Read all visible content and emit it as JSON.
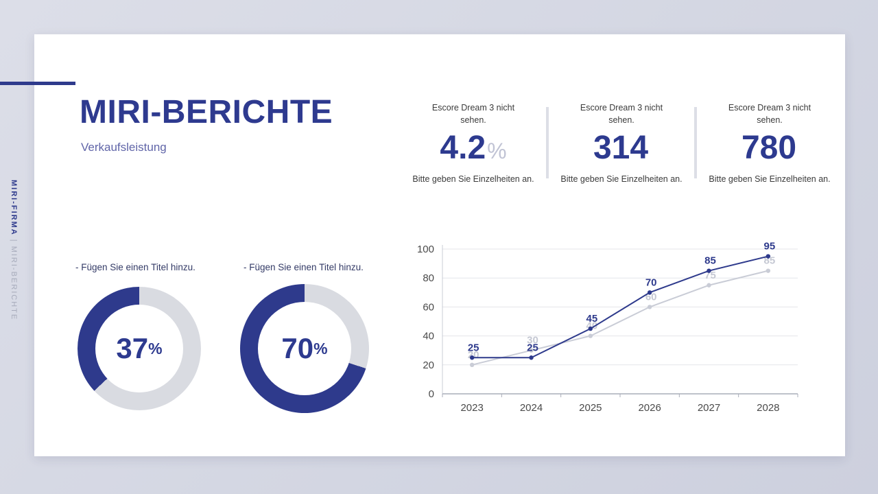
{
  "theme": {
    "accent": "#2e3a8c",
    "track": "#d9dbe1",
    "gray_series": "#c9ccd6",
    "axis_text": "#4a4a4a",
    "grid": "#e4e5ea"
  },
  "sidebar": {
    "brand": "MIRI-FIRMA",
    "separator": " | ",
    "section": "MIRI-BERICHTE"
  },
  "header": {
    "title": "MIRI-BERICHTE",
    "subtitle": "Verkaufsleistung"
  },
  "kpis": [
    {
      "top": "Escore Dream 3 nicht sehen.",
      "value": "4.2",
      "suffix": "%",
      "bottom": "Bitte geben Sie Einzelheiten an."
    },
    {
      "top": "Escore Dream 3 nicht sehen.",
      "value": "314",
      "suffix": "",
      "bottom": "Bitte geben Sie Einzelheiten an."
    },
    {
      "top": "Escore Dream 3 nicht sehen.",
      "value": "780",
      "suffix": "",
      "bottom": "Bitte geben Sie Einzelheiten an."
    }
  ],
  "donuts": [
    {
      "label": "- Fügen Sie einen Titel hinzu.",
      "value": 37,
      "display": "37",
      "suffix": "%"
    },
    {
      "label": "- Fügen Sie einen Titel hinzu.",
      "value": 70,
      "display": "70",
      "suffix": "%"
    }
  ],
  "chart_data": {
    "type": "line",
    "x": [
      "2023",
      "2024",
      "2025",
      "2026",
      "2027",
      "2028"
    ],
    "series": [
      {
        "name": "primary",
        "color": "#2e3a8c",
        "label_color": "#2e3a8c",
        "values": [
          25,
          25,
          45,
          70,
          85,
          95
        ]
      },
      {
        "name": "secondary",
        "color": "#c9ccd6",
        "label_color": "#c5c8d3",
        "values": [
          20,
          30,
          40,
          60,
          75,
          85
        ]
      }
    ],
    "ylim": [
      0,
      100
    ],
    "yticks": [
      0,
      20,
      40,
      60,
      80,
      100
    ],
    "grid": true,
    "legend": "none"
  }
}
